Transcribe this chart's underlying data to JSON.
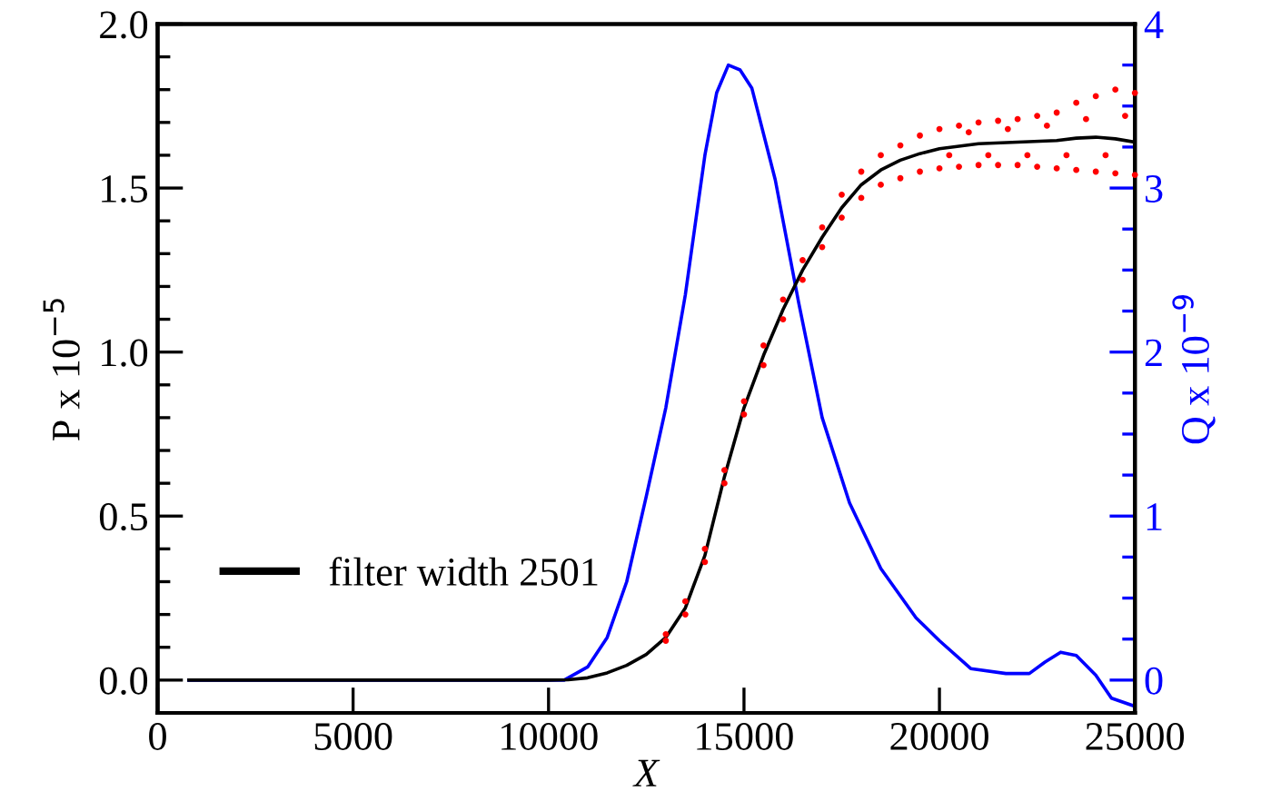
{
  "chart_data": {
    "type": "line",
    "xlabel": "X",
    "ylabel": "P x 10$^{−5}$",
    "y2label": "Q x 10$^{−9}$",
    "xlim": [
      0,
      25000
    ],
    "xticks": [
      0,
      5000,
      10000,
      15000,
      20000,
      25000
    ],
    "ylim": [
      -0.1,
      2.0
    ],
    "yticks": [
      {
        "value": 0.0,
        "label": "0.0"
      },
      {
        "value": 0.1,
        "label": null
      },
      {
        "value": 0.2,
        "label": null
      },
      {
        "value": 0.3,
        "label": null
      },
      {
        "value": 0.4,
        "label": null
      },
      {
        "value": 0.5,
        "label": "0.5"
      },
      {
        "value": 0.6,
        "label": null
      },
      {
        "value": 0.7,
        "label": null
      },
      {
        "value": 0.8,
        "label": null
      },
      {
        "value": 0.9,
        "label": null
      },
      {
        "value": 1.0,
        "label": "1.0"
      },
      {
        "value": 1.1,
        "label": null
      },
      {
        "value": 1.2,
        "label": null
      },
      {
        "value": 1.3,
        "label": null
      },
      {
        "value": 1.4,
        "label": null
      },
      {
        "value": 1.5,
        "label": "1.5"
      },
      {
        "value": 1.6,
        "label": null
      },
      {
        "value": 1.7,
        "label": null
      },
      {
        "value": 1.8,
        "label": null
      },
      {
        "value": 1.9,
        "label": null
      },
      {
        "value": 2.0,
        "label": "2.0"
      }
    ],
    "y2lim": [
      -0.2,
      4
    ],
    "y2ticks": [
      0,
      {
        "value": 0.25,
        "label": null
      },
      {
        "value": 0.5,
        "label": null
      },
      {
        "value": 0.75,
        "label": null
      },
      1,
      {
        "value": 1.25,
        "label": null
      },
      {
        "value": 1.5,
        "label": null
      },
      {
        "value": 1.75,
        "label": null
      },
      2,
      {
        "value": 2.25,
        "label": null
      },
      {
        "value": 2.5,
        "label": null
      },
      {
        "value": 2.75,
        "label": null
      },
      3,
      {
        "value": 3.25,
        "label": null
      },
      {
        "value": 3.5,
        "label": null
      },
      {
        "value": 3.75,
        "label": null
      },
      4
    ],
    "grid": false,
    "legend": "bottom left",
    "marker": "none",
    "line_style": "solid",
    "series": [
      {
        "type": "scatter",
        "marker": "circle",
        "color": "#ff0000",
        "x": [
          13000,
          13000,
          13500,
          13500,
          14000,
          14000,
          14500,
          14500,
          15000,
          15000,
          15500,
          15500,
          16000,
          16000,
          16500,
          16500,
          17000,
          17000,
          17500,
          17500,
          18000,
          18000,
          18500,
          18500,
          19000,
          19000,
          19500,
          19500,
          20000,
          20000,
          20250,
          20500,
          20500,
          20750,
          21000,
          21000,
          21250,
          21500,
          21500,
          21750,
          22000,
          22000,
          22250,
          22500,
          22500,
          22750,
          23000,
          23000,
          23250,
          23500,
          23500,
          23750,
          24000,
          24000,
          24250,
          24500,
          24500,
          24750,
          25000,
          25000
        ],
        "values": [
          0.12,
          0.14,
          0.2,
          0.24,
          0.36,
          0.4,
          0.6,
          0.64,
          0.81,
          0.85,
          0.96,
          1.02,
          1.1,
          1.16,
          1.22,
          1.28,
          1.32,
          1.38,
          1.41,
          1.48,
          1.47,
          1.55,
          1.51,
          1.6,
          1.53,
          1.63,
          1.55,
          1.66,
          1.56,
          1.68,
          1.6,
          1.565,
          1.69,
          1.67,
          1.57,
          1.7,
          1.6,
          1.57,
          1.705,
          1.68,
          1.57,
          1.71,
          1.6,
          1.565,
          1.72,
          1.69,
          1.56,
          1.73,
          1.6,
          1.555,
          1.76,
          1.71,
          1.55,
          1.78,
          1.6,
          1.545,
          1.8,
          1.72,
          1.54,
          1.79
        ]
      },
      {
        "name": "filter width 2501",
        "color": "#000000",
        "x": [
          800,
          10000,
          10500,
          11000,
          11500,
          12000,
          12500,
          13000,
          13500,
          14000,
          14500,
          15000,
          15500,
          16000,
          16500,
          17000,
          17500,
          18000,
          18500,
          19000,
          19500,
          20000,
          21000,
          22000,
          23000,
          23500,
          24000,
          24500,
          25000
        ],
        "values": [
          0,
          0,
          0.001,
          0.007,
          0.022,
          0.045,
          0.078,
          0.13,
          0.22,
          0.38,
          0.62,
          0.83,
          0.99,
          1.13,
          1.25,
          1.35,
          1.44,
          1.51,
          1.555,
          1.585,
          1.605,
          1.62,
          1.635,
          1.64,
          1.645,
          1.652,
          1.655,
          1.65,
          1.64
        ]
      },
      {
        "color": "#0000ff",
        "axis": "y2",
        "x": [
          800,
          10400,
          11000,
          11500,
          12000,
          12500,
          13000,
          13500,
          14000,
          14300,
          14600,
          14900,
          15200,
          15800,
          16400,
          17000,
          17700,
          18500,
          19400,
          20000,
          20800,
          21700,
          22300,
          22700,
          23100,
          23500,
          24000,
          24400,
          25000
        ],
        "values": [
          0,
          0,
          0.08,
          0.26,
          0.6,
          1.12,
          1.66,
          2.35,
          3.2,
          3.58,
          3.75,
          3.72,
          3.61,
          3.05,
          2.3,
          1.6,
          1.08,
          0.68,
          0.38,
          0.24,
          0.07,
          0.04,
          0.04,
          0.11,
          0.17,
          0.15,
          0.03,
          -0.11,
          -0.16
        ]
      }
    ]
  }
}
